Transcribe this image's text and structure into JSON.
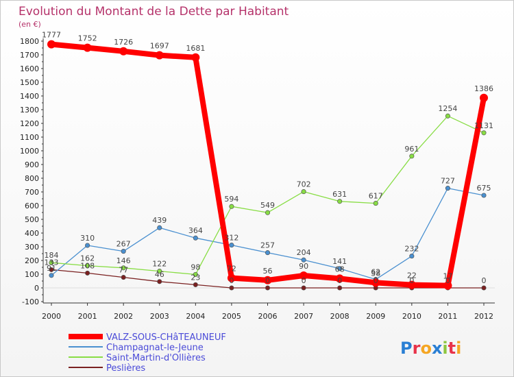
{
  "chart_data": {
    "type": "line",
    "title": "Evolution du Montant de la Dette par Habitant",
    "unit_label": "(en €)",
    "x": [
      "2000",
      "2001",
      "2002",
      "2003",
      "2004",
      "2005",
      "2006",
      "2007",
      "2008",
      "2009",
      "2010",
      "2011",
      "2012"
    ],
    "ylim": [
      -100,
      1800
    ],
    "yticks": [
      "-100",
      "0",
      "100",
      "200",
      "300",
      "400",
      "500",
      "600",
      "700",
      "800",
      "900",
      "1000",
      "1100",
      "1200",
      "1300",
      "1400",
      "1500",
      "1600",
      "1700",
      "1800"
    ],
    "grid": false,
    "legend_position": "bottom-left",
    "series": [
      {
        "name": "VALZ-SOUS-CHâTEAUNEUF",
        "color": "#ff0000",
        "values": [
          1777,
          1752,
          1726,
          1697,
          1681,
          72,
          56,
          90,
          68,
          38,
          22,
          17,
          1386
        ]
      },
      {
        "name": "Champagnat-le-Jeune",
        "color": "#4a90d0",
        "values": [
          91,
          310,
          267,
          439,
          364,
          312,
          257,
          204,
          141,
          62,
          232,
          727,
          675
        ]
      },
      {
        "name": "Saint-Martin-d'Ollières",
        "color": "#88dd44",
        "values": [
          184,
          162,
          146,
          122,
          98,
          594,
          549,
          702,
          631,
          617,
          961,
          1254,
          1131
        ]
      },
      {
        "name": "Peslières",
        "color": "#7a2020",
        "values": [
          133,
          108,
          77,
          46,
          23,
          0,
          0,
          0,
          0,
          0,
          0,
          0,
          0
        ]
      }
    ]
  },
  "brand": {
    "text": "Proxiti",
    "colors": [
      "#2a7fd4",
      "#e8334a",
      "#f5a623",
      "#2a7fd4",
      "#8dc63f",
      "#e8334a",
      "#f5a623"
    ]
  }
}
